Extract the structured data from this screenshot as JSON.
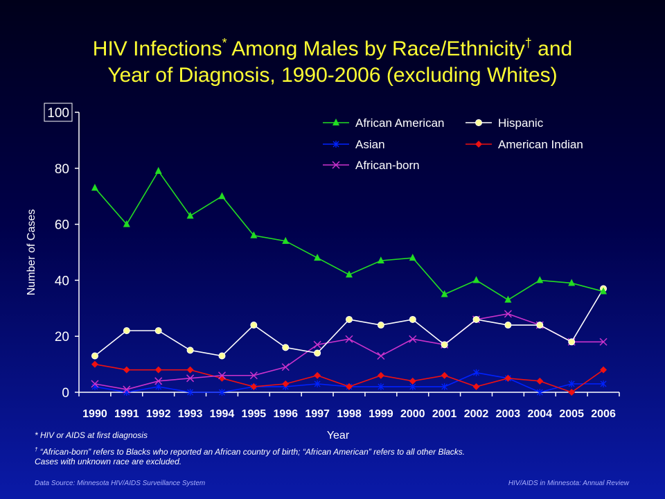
{
  "title": {
    "line1_a": "HIV Infections",
    "line1_mark1": "*",
    "line1_b": " Among Males by Race/Ethnicity",
    "line1_mark2": "†",
    "line1_c": " and",
    "line2": "Year of Diagnosis, 1990-2006 (excluding Whites)"
  },
  "chart_data": {
    "type": "line",
    "x": [
      "1990",
      "1991",
      "1992",
      "1993",
      "1994",
      "1995",
      "1996",
      "1997",
      "1998",
      "1999",
      "2000",
      "2001",
      "2002",
      "2003",
      "2004",
      "2005",
      "2006"
    ],
    "xlabel": "Year",
    "ylabel": "Number of Cases",
    "ylim": [
      0,
      100
    ],
    "yticks": [
      "0",
      "20",
      "40",
      "60",
      "80",
      "100"
    ],
    "legend_position": "top-right",
    "series": [
      {
        "name": "African American",
        "color": "#22dd22",
        "marker": "triangle",
        "values": [
          73,
          60,
          79,
          63,
          70,
          56,
          54,
          48,
          42,
          47,
          48,
          35,
          40,
          33,
          40,
          39,
          36
        ]
      },
      {
        "name": "Hispanic",
        "color": "#ffffff",
        "marker": "circle",
        "values": [
          13,
          22,
          22,
          15,
          13,
          24,
          16,
          14,
          26,
          24,
          26,
          17,
          26,
          24,
          24,
          18,
          37
        ]
      },
      {
        "name": "Asian",
        "color": "#0022ff",
        "marker": "asterisk",
        "values": [
          2,
          0,
          2,
          0,
          0,
          2,
          2,
          3,
          2,
          2,
          2,
          2,
          7,
          5,
          0,
          3,
          3
        ]
      },
      {
        "name": "American Indian",
        "color": "#ee1111",
        "marker": "diamond",
        "values": [
          10,
          8,
          8,
          8,
          5,
          2,
          3,
          6,
          2,
          6,
          4,
          6,
          2,
          5,
          4,
          0,
          8
        ]
      },
      {
        "name": "African-born",
        "color": "#cc33cc",
        "marker": "x",
        "values": [
          3,
          1,
          4,
          5,
          6,
          6,
          9,
          17,
          19,
          13,
          19,
          17,
          26,
          28,
          24,
          18,
          18
        ]
      }
    ]
  },
  "notes": {
    "note1_mark": "*",
    "note1": " HIV or AIDS at first diagnosis",
    "note2_mark": "†",
    "note2_line1": " “African-born” refers to Blacks who reported an African country of birth; “African American” refers to all other Blacks.",
    "note2_line2": "Cases with unknown race are excluded."
  },
  "footer": {
    "source_label": "Data Source: ",
    "source_name": "Minnesota HIV/AIDS Surveillance System",
    "right": "HIV/AIDS in Minnesota: Annual Review"
  }
}
